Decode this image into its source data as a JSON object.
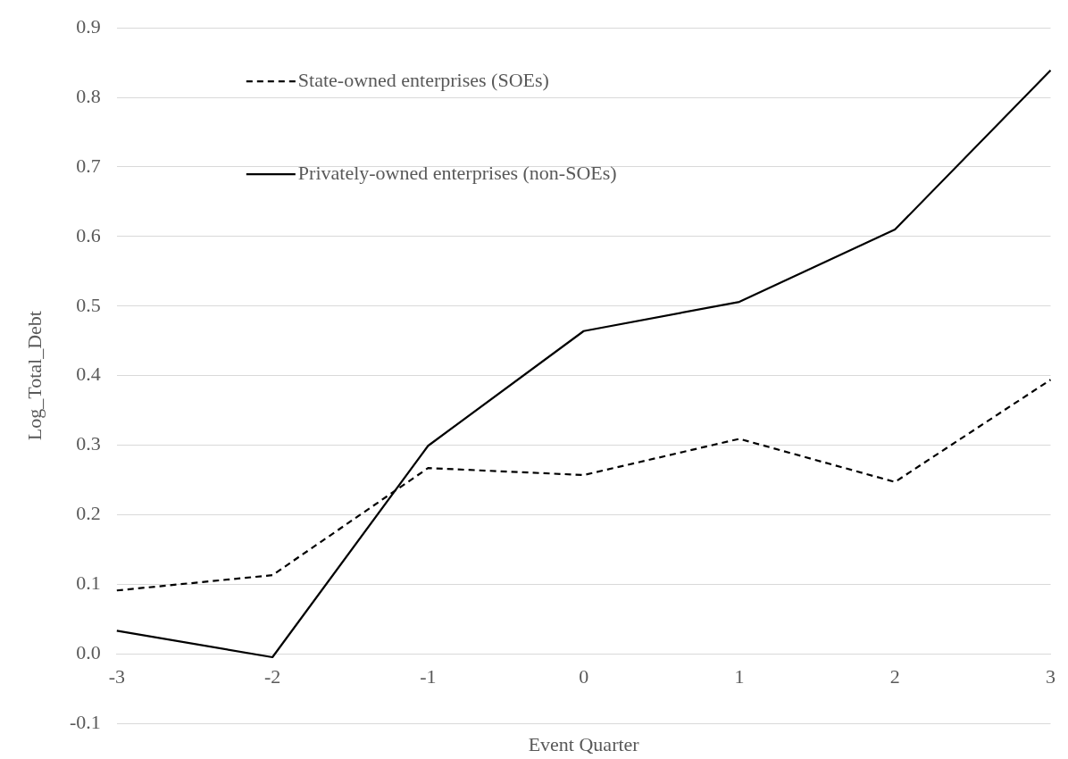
{
  "chart_data": {
    "type": "line",
    "xlabel": "Event Quarter",
    "ylabel": "Log_Total_Debt",
    "categories": [
      "-3",
      "-2",
      "-1",
      "0",
      "1",
      "2",
      "3"
    ],
    "series": [
      {
        "name": "State-owned enterprises (SOEs)",
        "color": "#000000",
        "line_style": "dashed",
        "values": [
          0.091,
          0.113,
          0.267,
          0.257,
          0.309,
          0.247,
          0.394
        ]
      },
      {
        "name": "Privately-owned enterprises (non-SOEs)",
        "color": "#000000",
        "line_style": "solid",
        "values": [
          0.033,
          -0.005,
          0.299,
          0.464,
          0.506,
          0.61,
          0.839
        ]
      }
    ],
    "ylim": [
      -0.1,
      0.9
    ],
    "yticks": [
      {
        "value": -0.1,
        "label": "-0.1"
      },
      {
        "value": 0,
        "label": "0.0"
      },
      {
        "value": 0.1,
        "label": "0.1"
      },
      {
        "value": 0.2,
        "label": "0.2"
      },
      {
        "value": 0.3,
        "label": "0.3"
      },
      {
        "value": 0.4,
        "label": "0.4"
      },
      {
        "value": 0.5,
        "label": "0.5"
      },
      {
        "value": 0.6,
        "label": "0.6"
      },
      {
        "value": 0.7,
        "label": "0.7"
      },
      {
        "value": 0.8,
        "label": "0.8"
      },
      {
        "value": 0.9,
        "label": "0.9"
      }
    ],
    "grid": "y",
    "legend": "top left",
    "marker": "none"
  }
}
